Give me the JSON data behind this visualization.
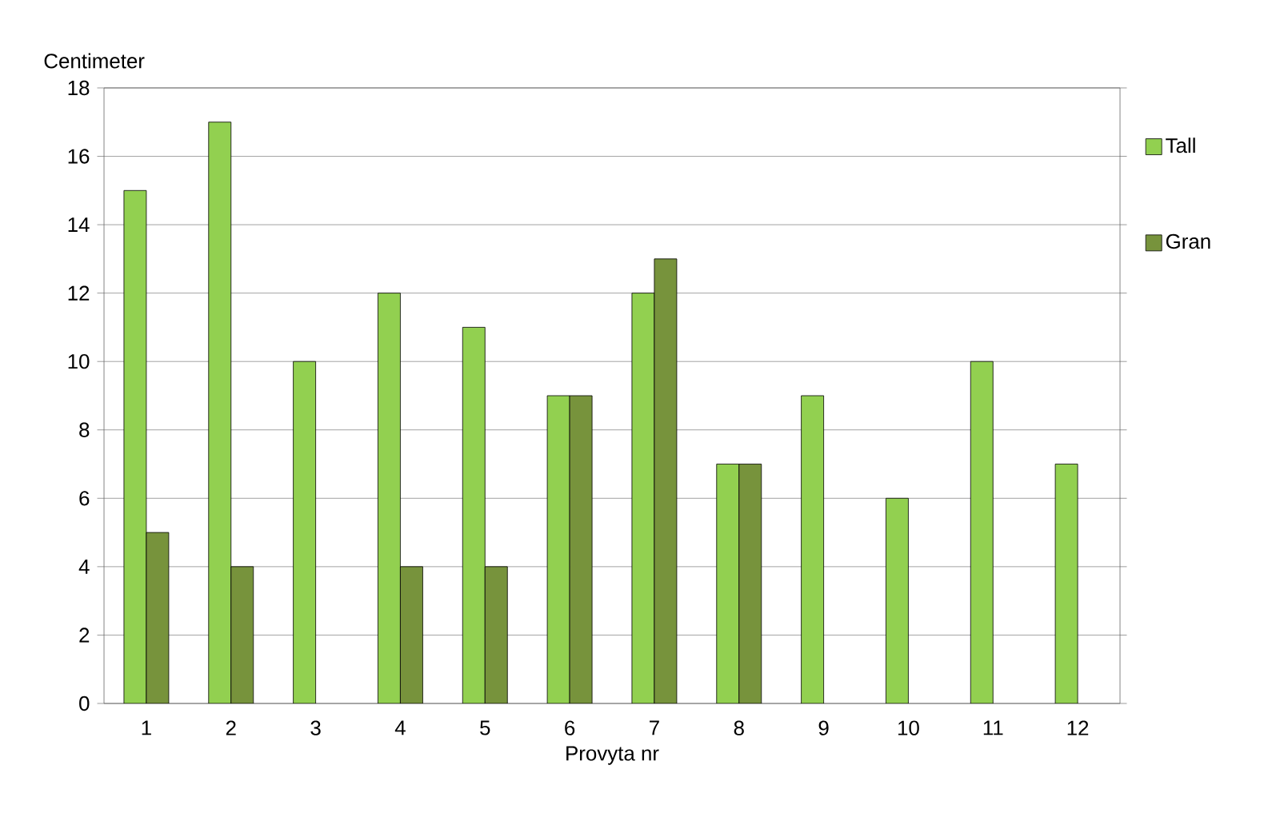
{
  "chart_data": {
    "type": "bar",
    "xlabel": "Provyta nr",
    "ylabel": "Centimeter",
    "categories": [
      "1",
      "2",
      "3",
      "4",
      "5",
      "6",
      "7",
      "8",
      "9",
      "10",
      "11",
      "12"
    ],
    "series": [
      {
        "name": "Tall",
        "color": "#92d050",
        "values": [
          15,
          17,
          10,
          12,
          11,
          9,
          12,
          7,
          9,
          6,
          10,
          7
        ]
      },
      {
        "name": "Gran",
        "color": "#77933c",
        "values": [
          5,
          4,
          null,
          4,
          4,
          9,
          13,
          7,
          null,
          null,
          null,
          null
        ]
      }
    ],
    "ylim": [
      0,
      18
    ],
    "yticks": [
      0,
      2,
      4,
      6,
      8,
      10,
      12,
      14,
      16,
      18
    ],
    "grid": "y",
    "legend": "right"
  }
}
